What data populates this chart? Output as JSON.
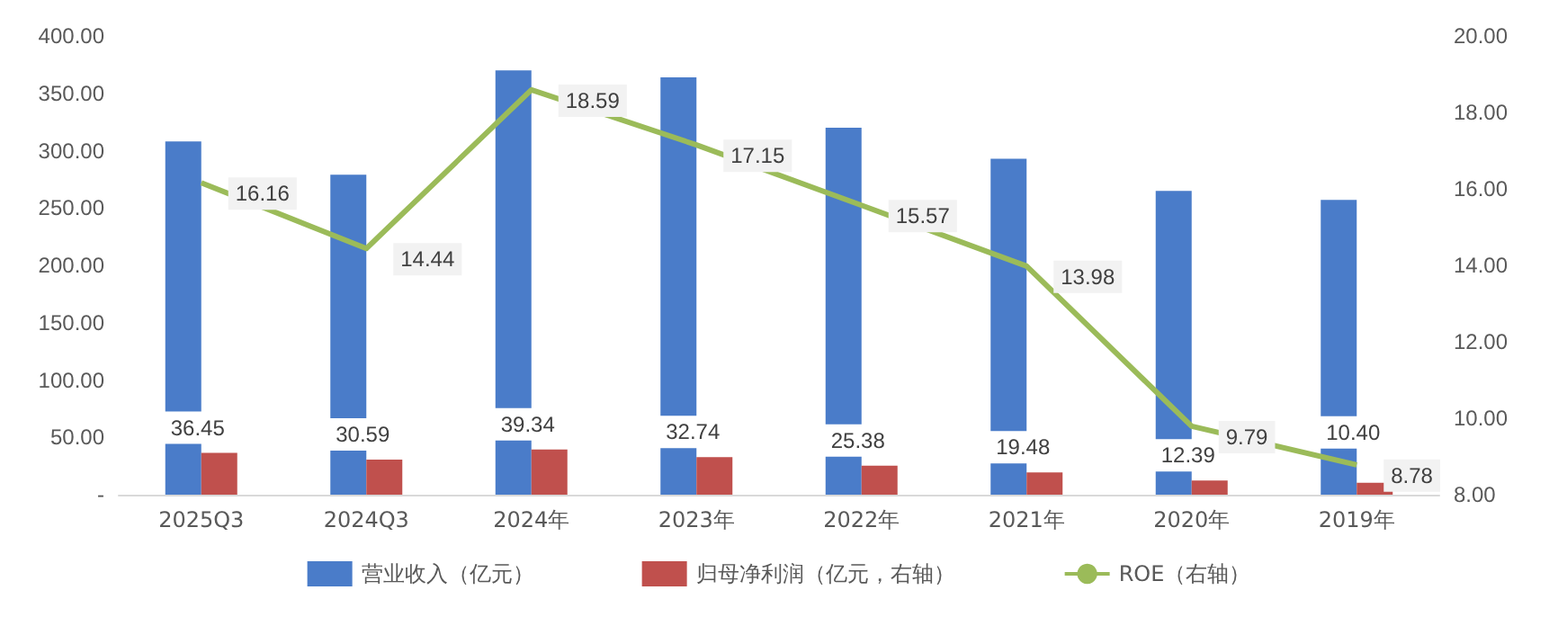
{
  "chart_data": {
    "type": "bar",
    "categories": [
      "2025Q3",
      "2024Q3",
      "2024年",
      "2023年",
      "2022年",
      "2021年",
      "2020年",
      "2019年"
    ],
    "series": [
      {
        "name": "营业收入（亿元）",
        "color": "#4a7cc9",
        "values": [
          308,
          279,
          370,
          364,
          320,
          293,
          265,
          257
        ]
      },
      {
        "name": "归母净利润（亿元，右轴）",
        "color": "#c0504d",
        "values": [
          36.45,
          30.59,
          39.34,
          32.74,
          25.38,
          19.48,
          12.39,
          10.4
        ],
        "value_labels": [
          "36.45",
          "30.59",
          "39.34",
          "32.74",
          "25.38",
          "19.48",
          "12.39",
          "10.40"
        ]
      },
      {
        "name": "ROE（右轴）",
        "type": "line",
        "axis": "y2",
        "color": "#9bbb59",
        "marker": "none",
        "values": [
          16.16,
          14.44,
          18.59,
          17.15,
          15.57,
          13.98,
          9.79,
          8.78
        ],
        "value_labels": [
          "16.16",
          "14.44",
          "18.59",
          "17.15",
          "15.57",
          "13.98",
          "9.79",
          "8.78"
        ]
      }
    ],
    "ylim": [
      0,
      400
    ],
    "yticks": [
      {
        "value": 0,
        "label": "-"
      },
      {
        "value": 50,
        "label": "50.00"
      },
      {
        "value": 100,
        "label": "100.00"
      },
      {
        "value": 150,
        "label": "150.00"
      },
      {
        "value": 200,
        "label": "200.00"
      },
      {
        "value": 250,
        "label": "250.00"
      },
      {
        "value": 300,
        "label": "300.00"
      },
      {
        "value": 350,
        "label": "350.00"
      },
      {
        "value": 400,
        "label": "400.00"
      }
    ],
    "y2lim": [
      8,
      20
    ],
    "y2ticks": [
      {
        "value": 8,
        "label": "8.00"
      },
      {
        "value": 10,
        "label": "10.00"
      },
      {
        "value": 12,
        "label": "12.00"
      },
      {
        "value": 14,
        "label": "14.00"
      },
      {
        "value": 16,
        "label": "16.00"
      },
      {
        "value": 18,
        "label": "18.00"
      },
      {
        "value": 20,
        "label": "20.00"
      }
    ],
    "grid": false,
    "legend": "bottom"
  }
}
